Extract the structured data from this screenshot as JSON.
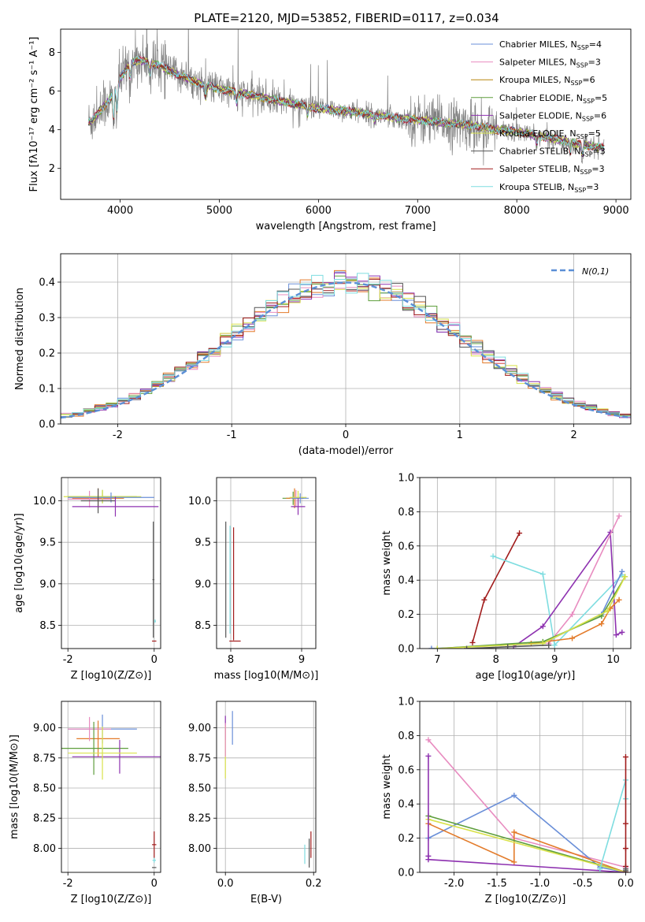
{
  "figure": {
    "title": "PLATE=2120, MJD=53852, FIBERID=0117, z=0.034",
    "palette": [
      "#6a8fd8",
      "#e37b2a",
      "#e88cc0",
      "#5e9e3c",
      "#8e32b0",
      "#d9e24a",
      "#555555",
      "#a11c1c",
      "#7edde0"
    ]
  },
  "chart_data": [
    {
      "id": "spectrum",
      "type": "line",
      "xlabel": "wavelength [Angstrom, rest frame]",
      "ylabel": "Flux [fλ10⁻¹⁷ erg cm⁻² s⁻¹ A⁻¹]",
      "xlim": [
        3400,
        9150
      ],
      "ylim": [
        0.4,
        9.2
      ],
      "xticks": [
        4000,
        5000,
        6000,
        7000,
        8000,
        9000
      ],
      "yticks": [
        2,
        4,
        6,
        8
      ],
      "grid": false,
      "legend_position": "top-right",
      "observed_color": "#808080",
      "continuum_x": [
        3700,
        3800,
        3900,
        4000,
        4100,
        4200,
        4400,
        4600,
        4800,
        5000,
        5200,
        5400,
        5600,
        5800,
        6000,
        6200,
        6400,
        6600,
        6800,
        7000,
        7200,
        7400,
        7600,
        7800,
        8000,
        8200,
        8400,
        8600,
        8800
      ],
      "continuum_y": [
        4.4,
        5.0,
        5.6,
        6.6,
        7.5,
        7.6,
        7.3,
        6.8,
        6.4,
        6.1,
        5.9,
        5.7,
        5.5,
        5.3,
        5.1,
        5.0,
        4.9,
        4.75,
        4.6,
        4.5,
        4.4,
        4.3,
        4.2,
        4.0,
        3.9,
        3.7,
        3.5,
        3.3,
        3.1
      ],
      "series": [
        {
          "name": "Chabrier MILES, N",
          "sub": "SSP",
          "suffix": "=4",
          "color": "#6a8fd8"
        },
        {
          "name": "Salpeter MILES, N",
          "sub": "SSP",
          "suffix": "=3",
          "color": "#e88cc0"
        },
        {
          "name": "Kroupa MILES, N",
          "sub": "SSP",
          "suffix": "=6",
          "color": "#b8860b"
        },
        {
          "name": "Chabrier ELODIE, N",
          "sub": "SSP",
          "suffix": "=5",
          "color": "#5e9e3c"
        },
        {
          "name": "Salpeter ELODIE, N",
          "sub": "SSP",
          "suffix": "=6",
          "color": "#8e32b0"
        },
        {
          "name": "Kroupa ELODIE, N",
          "sub": "SSP",
          "suffix": "=5",
          "color": "#d9e24a"
        },
        {
          "name": "Chabrier STELIB, N",
          "sub": "SSP",
          "suffix": "=3",
          "color": "#555555"
        },
        {
          "name": "Salpeter STELIB, N",
          "sub": "SSP",
          "suffix": "=3",
          "color": "#a11c1c"
        },
        {
          "name": "Kroupa STELIB, N",
          "sub": "SSP",
          "suffix": "=3",
          "color": "#7edde0"
        }
      ]
    },
    {
      "id": "residuals",
      "type": "histogram",
      "xlabel": "(data-model)/error",
      "ylabel": "Normed distribution",
      "xlim": [
        -2.5,
        2.5
      ],
      "ylim": [
        0,
        0.48
      ],
      "xticks": [
        -2,
        -1,
        0,
        1,
        2
      ],
      "yticks": [
        0.0,
        0.1,
        0.2,
        0.3,
        0.4
      ],
      "grid": true,
      "bin_width": 0.1,
      "gaussian": {
        "label": "N(0,1)",
        "color": "#5b8fd6",
        "mu": 0,
        "sigma": 1
      },
      "series_colors": [
        "#6a8fd8",
        "#e37b2a",
        "#e88cc0",
        "#5e9e3c",
        "#8e32b0",
        "#d9e24a",
        "#555555",
        "#a11c1c",
        "#7edde0"
      ]
    },
    {
      "id": "age_vs_Z",
      "type": "errorbar",
      "xlabel": "Z [log10(Z/Z⊙)]",
      "ylabel": "age  [log10(age/yr)]",
      "xlim": [
        -2.15,
        0.15
      ],
      "ylim": [
        8.22,
        10.28
      ],
      "xticks": [
        -2,
        0
      ],
      "yticks": [
        8.5,
        9.0,
        9.5,
        10.0
      ],
      "grid": true,
      "points": [
        {
          "x": -1.2,
          "y": 10.05,
          "xerr": 0.8,
          "yerr": 0.08,
          "color": "#5e9e3c"
        },
        {
          "x": -1.3,
          "y": 10.03,
          "xerr": 0.6,
          "yerr": 0.12,
          "color": "#e37b2a"
        },
        {
          "x": -1.5,
          "y": 10.02,
          "xerr": 0.5,
          "yerr": 0.1,
          "color": "#e88cc0"
        },
        {
          "x": -1.2,
          "y": 10.05,
          "xerr": 0.9,
          "yerr": 0.08,
          "color": "#d9e24a"
        },
        {
          "x": -1.0,
          "y": 10.04,
          "xerr": 1.0,
          "yerr": 0.06,
          "color": "#6a8fd8"
        },
        {
          "x": -1.3,
          "y": 10.0,
          "xerr": 0.4,
          "yerr": 0.15,
          "color": "#555555"
        },
        {
          "x": -0.9,
          "y": 9.93,
          "xerr": 1.0,
          "yerr": 0.12,
          "color": "#8e32b0"
        },
        {
          "x": -0.02,
          "y": 9.05,
          "xerr": 0.02,
          "yerr": 0.7,
          "color": "#555555"
        },
        {
          "x": 0.0,
          "y": 8.31,
          "xerr": 0.05,
          "yerr": 0.0,
          "color": "#a11c1c"
        },
        {
          "x": 0.02,
          "y": 8.55,
          "xerr": 0.02,
          "yerr": 0.02,
          "color": "#7edde0"
        }
      ]
    },
    {
      "id": "age_vs_mass",
      "type": "errorbar",
      "xlabel": "mass [log10(M/M⊙)]",
      "ylabel": "",
      "xlim": [
        7.8,
        9.2
      ],
      "ylim": [
        8.22,
        10.28
      ],
      "xticks": [
        8,
        9
      ],
      "yticks": [
        8.5,
        9.0,
        9.5,
        10.0
      ],
      "grid": true,
      "points": [
        {
          "x": 8.88,
          "y": 10.03,
          "xerr": 0.15,
          "yerr": 0.08,
          "color": "#5e9e3c"
        },
        {
          "x": 8.9,
          "y": 10.03,
          "xerr": 0.12,
          "yerr": 0.12,
          "color": "#e37b2a"
        },
        {
          "x": 8.92,
          "y": 10.03,
          "xerr": 0.08,
          "yerr": 0.1,
          "color": "#e88cc0"
        },
        {
          "x": 8.95,
          "y": 10.04,
          "xerr": 0.12,
          "yerr": 0.08,
          "color": "#d9e24a"
        },
        {
          "x": 8.98,
          "y": 10.03,
          "xerr": 0.12,
          "yerr": 0.06,
          "color": "#6a8fd8"
        },
        {
          "x": 8.95,
          "y": 9.93,
          "xerr": 0.1,
          "yerr": 0.1,
          "color": "#8e32b0"
        },
        {
          "x": 7.93,
          "y": 9.05,
          "xerr": 0.0,
          "yerr": 0.7,
          "color": "#555555"
        },
        {
          "x": 8.04,
          "y": 9.0,
          "xerr": 0.0,
          "yerr": 0.68,
          "color": "#a11c1c"
        },
        {
          "x": 8.06,
          "y": 8.31,
          "xerr": 0.08,
          "yerr": 0.0,
          "color": "#a11c1c"
        },
        {
          "x": 7.99,
          "y": 9.05,
          "xerr": 0.0,
          "yerr": 0.65,
          "color": "#7edde0"
        }
      ]
    },
    {
      "id": "massweight_vs_age",
      "type": "line",
      "xlabel": "age  [log10(age/yr)]",
      "ylabel": "mass weight",
      "xlim": [
        6.7,
        10.3
      ],
      "ylim": [
        0,
        1
      ],
      "xticks": [
        7,
        8,
        9,
        10
      ],
      "yticks": [
        0.0,
        0.2,
        0.4,
        0.6,
        0.8,
        1.0
      ],
      "grid": true,
      "series": [
        {
          "color": "#a11c1c",
          "x": [
            7.6,
            7.8,
            8.4
          ],
          "y": [
            0.035,
            0.285,
            0.675
          ]
        },
        {
          "color": "#7edde0",
          "x": [
            7.95,
            8.8,
            9.0,
            10.15
          ],
          "y": [
            0.54,
            0.435,
            0.02,
            0.43
          ]
        },
        {
          "color": "#8e32b0",
          "x": [
            8.3,
            8.8,
            9.95,
            10.05,
            10.15
          ],
          "y": [
            0.01,
            0.13,
            0.68,
            0.08,
            0.095
          ]
        },
        {
          "color": "#e88cc0",
          "x": [
            8.9,
            9.3,
            10.1
          ],
          "y": [
            0.03,
            0.2,
            0.775
          ]
        },
        {
          "color": "#6a8fd8",
          "x": [
            6.9,
            8.8,
            9.8,
            10.15
          ],
          "y": [
            0.0,
            0.03,
            0.2,
            0.45
          ]
        },
        {
          "color": "#e37b2a",
          "x": [
            8.6,
            9.3,
            9.8,
            9.95,
            10.1
          ],
          "y": [
            0.03,
            0.06,
            0.145,
            0.235,
            0.285
          ]
        },
        {
          "color": "#5e9e3c",
          "x": [
            7.0,
            8.8,
            9.8,
            10.2
          ],
          "y": [
            0.0,
            0.04,
            0.19,
            0.42
          ]
        },
        {
          "color": "#d9e24a",
          "x": [
            7.0,
            8.8,
            9.9,
            10.2
          ],
          "y": [
            0.0,
            0.03,
            0.22,
            0.42
          ]
        },
        {
          "color": "#555555",
          "x": [
            7.5,
            8.2,
            8.9
          ],
          "y": [
            0.0,
            0.01,
            0.02
          ]
        }
      ]
    },
    {
      "id": "mass_vs_Z",
      "type": "errorbar",
      "xlabel": "Z [log10(Z/Z⊙)]",
      "ylabel": "mass [log10(M/M⊙)]",
      "xlim": [
        -2.15,
        0.15
      ],
      "ylim": [
        7.8,
        9.22
      ],
      "xticks": [
        -2,
        0
      ],
      "yticks": [
        8.0,
        8.25,
        8.5,
        8.75,
        9.0,
        9.25
      ],
      "grid": true,
      "points": [
        {
          "x": -1.2,
          "y": 8.99,
          "xerr": 0.8,
          "yerr": 0.12,
          "color": "#6a8fd8"
        },
        {
          "x": -1.3,
          "y": 8.91,
          "xerr": 0.5,
          "yerr": 0.15,
          "color": "#e37b2a"
        },
        {
          "x": -1.5,
          "y": 8.99,
          "xerr": 0.5,
          "yerr": 0.1,
          "color": "#e88cc0"
        },
        {
          "x": -1.4,
          "y": 8.83,
          "xerr": 0.8,
          "yerr": 0.22,
          "color": "#5e9e3c"
        },
        {
          "x": -0.8,
          "y": 8.76,
          "xerr": 1.1,
          "yerr": 0.14,
          "color": "#8e32b0"
        },
        {
          "x": -1.2,
          "y": 8.79,
          "xerr": 0.8,
          "yerr": 0.22,
          "color": "#d9e24a"
        },
        {
          "x": 0.0,
          "y": 8.03,
          "xerr": 0.05,
          "yerr": 0.11,
          "color": "#a11c1c"
        },
        {
          "x": 0.0,
          "y": 7.84,
          "xerr": 0.05,
          "yerr": 0.0,
          "color": "#555555"
        },
        {
          "x": 0.0,
          "y": 7.9,
          "xerr": 0.04,
          "yerr": 0.02,
          "color": "#7edde0"
        }
      ]
    },
    {
      "id": "mass_vs_EBV",
      "type": "errorbar",
      "xlabel": "E(B-V)",
      "ylabel": "",
      "xlim": [
        -0.02,
        0.205
      ],
      "ylim": [
        7.8,
        9.22
      ],
      "xticks": [
        0.0,
        0.2
      ],
      "yticks": [
        8.0,
        8.25,
        8.5,
        8.75,
        9.0,
        9.25
      ],
      "grid": true,
      "points": [
        {
          "x": 0.0,
          "y": 9.0,
          "xerr": 0.0,
          "yerr": 0.1,
          "color": "#8e32b0"
        },
        {
          "x": 0.016,
          "y": 9.0,
          "xerr": 0.0,
          "yerr": 0.14,
          "color": "#6a8fd8"
        },
        {
          "x": 0.0,
          "y": 8.8,
          "xerr": 0.0,
          "yerr": 0.22,
          "color": "#d9e24a"
        },
        {
          "x": 0.0,
          "y": 8.9,
          "xerr": 0.0,
          "yerr": 0.14,
          "color": "#e88cc0"
        },
        {
          "x": 0.194,
          "y": 8.03,
          "xerr": 0.0,
          "yerr": 0.11,
          "color": "#a11c1c"
        },
        {
          "x": 0.19,
          "y": 7.96,
          "xerr": 0.0,
          "yerr": 0.12,
          "color": "#555555"
        },
        {
          "x": 0.18,
          "y": 7.95,
          "xerr": 0.0,
          "yerr": 0.08,
          "color": "#7edde0"
        }
      ]
    },
    {
      "id": "massweight_vs_Z",
      "type": "line",
      "xlabel": "Z [log10(Z/Z⊙)]",
      "ylabel": "mass weight",
      "xlim": [
        -2.4,
        0.06
      ],
      "ylim": [
        0,
        1
      ],
      "xticks": [
        -2.0,
        -1.5,
        -1.0,
        -0.5,
        0.0
      ],
      "yticks": [
        0.0,
        0.2,
        0.4,
        0.6,
        0.8,
        1.0
      ],
      "grid": true,
      "series": [
        {
          "color": "#e88cc0",
          "x": [
            -2.3,
            -1.3,
            0.0
          ],
          "y": [
            0.775,
            0.2,
            0.03
          ]
        },
        {
          "color": "#6a8fd8",
          "x": [
            -2.3,
            -1.3,
            -0.3,
            0.0
          ],
          "y": [
            0.2,
            0.45,
            0.03,
            0.0
          ]
        },
        {
          "color": "#e37b2a",
          "x": [
            -2.3,
            -1.3,
            -1.3,
            0.0
          ],
          "y": [
            0.285,
            0.06,
            0.235,
            0.0
          ]
        },
        {
          "color": "#5e9e3c",
          "x": [
            -2.3,
            0.0
          ],
          "y": [
            0.33,
            0.0
          ]
        },
        {
          "color": "#d9e24a",
          "x": [
            -2.3,
            0.0
          ],
          "y": [
            0.31,
            0.0
          ]
        },
        {
          "color": "#8e32b0",
          "x": [
            -2.3,
            -2.3,
            -2.3,
            0.0
          ],
          "y": [
            0.68,
            0.095,
            0.075,
            0.0
          ]
        },
        {
          "color": "#7edde0",
          "x": [
            -0.3,
            0.0,
            0.0
          ],
          "y": [
            0.02,
            0.54,
            0.43
          ]
        },
        {
          "color": "#a11c1c",
          "x": [
            0.0,
            0.0,
            0.0,
            0.0,
            0.0
          ],
          "y": [
            0.675,
            0.285,
            0.14,
            0.035,
            0.0
          ]
        },
        {
          "color": "#555555",
          "x": [
            0.0,
            0.0
          ],
          "y": [
            0.02,
            0.01
          ]
        }
      ]
    }
  ]
}
